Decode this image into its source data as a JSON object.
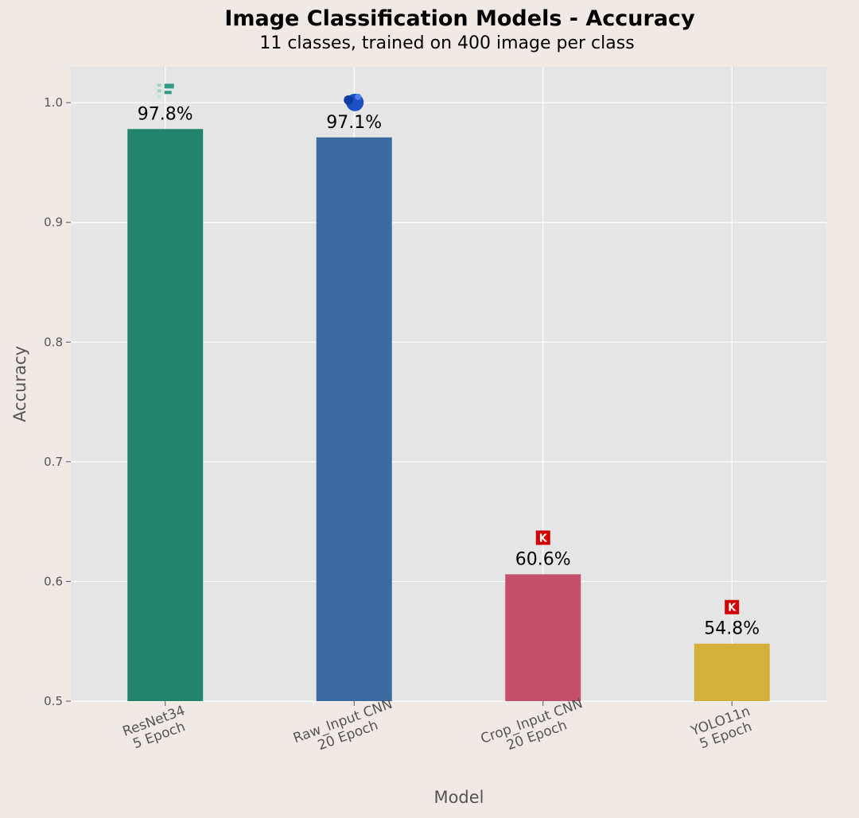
{
  "chart_data": {
    "type": "bar",
    "title": "Image Classification Models - Accuracy",
    "subtitle": "11 classes, trained on 400 image per class",
    "xlabel": "Model",
    "ylabel": "Accuracy",
    "ylim": [
      0.5,
      1.03
    ],
    "yticks": [
      "0.5",
      "0.6",
      "0.7",
      "0.8",
      "0.9",
      "1.0"
    ],
    "grid": true,
    "categories": [
      [
        "ResNet34",
        "5 Epoch"
      ],
      [
        "Raw_Input CNN",
        "20 Epoch"
      ],
      [
        "Crop_Input CNN",
        "20 Epoch"
      ],
      [
        "YOLO11n",
        "5 Epoch"
      ]
    ],
    "values": [
      0.978,
      0.971,
      0.606,
      0.548
    ],
    "data_labels": [
      "97.8%",
      "97.1%",
      "60.6%",
      "54.8%"
    ],
    "colors": [
      "#23846b",
      "#3b6ba1",
      "#c4506e",
      "#d4b03a"
    ],
    "icons": [
      "pytorch-icon",
      "python-icon",
      "keras-icon",
      "keras-icon"
    ]
  }
}
